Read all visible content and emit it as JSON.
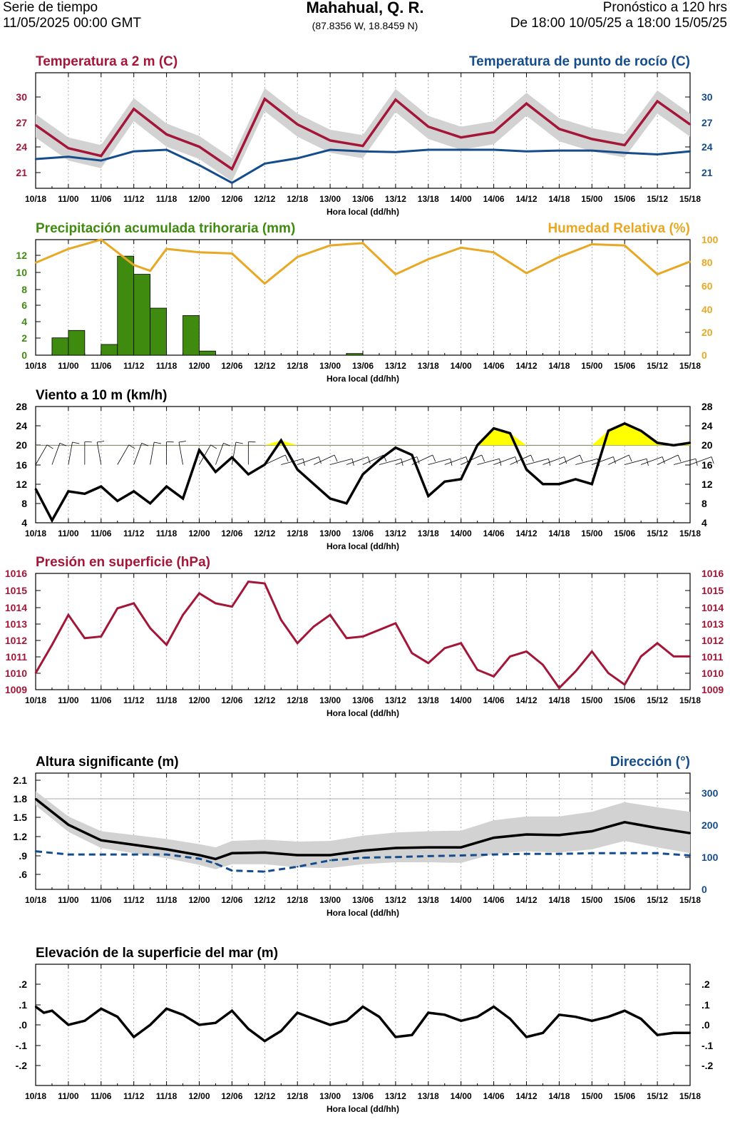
{
  "header": {
    "left_line1": "Serie de tiempo",
    "left_line2": "11/05/2025 00:00 GMT",
    "title": "Mahahual, Q. R.",
    "coords": "(87.8356 W, 18.8459 N)",
    "right_line1": "Pronóstico a 120 hrs",
    "right_line2": "De 18:00 10/05/25 a 18:00 15/05/25"
  },
  "colors": {
    "temp": "#a31638",
    "dew": "#144c8c",
    "precip": "#3f8b10",
    "rh": "#e8a824",
    "wind_fill": "#ffff00",
    "band": "#d2d2d2"
  },
  "chart_data": [
    {
      "id": "temp",
      "type": "line",
      "title_left": "Temperatura a 2 m (C)",
      "title_right": "Temperatura de punto de rocío (C)",
      "xlabel": "Hora local (dd/hh)",
      "x_ticks": [
        "10/18",
        "11/00",
        "11/06",
        "11/12",
        "11/18",
        "12/00",
        "12/06",
        "12/12",
        "12/18",
        "13/00",
        "13/06",
        "13/12",
        "13/18",
        "14/00",
        "14/06",
        "14/12",
        "14/18",
        "15/00",
        "15/06",
        "15/12",
        "15/18"
      ],
      "ylim": [
        19,
        34
      ],
      "y_ticks_left": [
        "21",
        "24",
        "27",
        "30"
      ],
      "y_ticks_right": [
        "21",
        "24",
        "27",
        "30"
      ],
      "x": [
        0,
        1,
        2,
        3,
        4,
        5,
        6,
        7,
        8,
        9,
        10,
        11,
        12,
        13,
        14,
        15,
        16,
        17,
        18,
        19,
        20
      ],
      "series": [
        {
          "name": "Temperatura a 2 m",
          "values": [
            27.2,
            24.2,
            23.2,
            29.3,
            26.0,
            24.4,
            21.5,
            30.6,
            27.3,
            25.2,
            24.5,
            30.5,
            27.0,
            25.6,
            26.3,
            30.0,
            26.7,
            25.4,
            24.6,
            30.3,
            27.3
          ]
        },
        {
          "name": "Temperatura de punto de rocío",
          "values": [
            22.8,
            23.1,
            22.6,
            23.8,
            24.0,
            22.0,
            19.7,
            22.2,
            22.9,
            24.0,
            23.8,
            23.7,
            24.0,
            24.0,
            24.0,
            23.8,
            23.9,
            23.9,
            23.6,
            23.4,
            23.8
          ]
        }
      ]
    },
    {
      "id": "precip",
      "type": "bar",
      "title_left": "Precipitación acumulada trihoraria (mm)",
      "title_right": "Humedad Relativa (%)",
      "xlabel": "Hora local (dd/hh)",
      "x_ticks": [
        "10/18",
        "11/00",
        "11/06",
        "11/12",
        "11/18",
        "12/00",
        "12/06",
        "12/12",
        "12/18",
        "13/00",
        "13/06",
        "13/12",
        "13/18",
        "14/00",
        "14/06",
        "14/12",
        "14/18",
        "15/00",
        "15/06",
        "15/12",
        "15/18"
      ],
      "ylim": [
        0,
        14
      ],
      "y_ticks_left": [
        "0",
        "2",
        "4",
        "6",
        "8",
        "10",
        "12"
      ],
      "y_ticks_right": [
        "0",
        "20",
        "40",
        "60",
        "80",
        "100"
      ],
      "bars": {
        "x_start": [
          0.5,
          1.0,
          2.0,
          2.5,
          3.0,
          3.5,
          4.5,
          5.0,
          9.5
        ],
        "values": [
          2.1,
          3.0,
          1.3,
          12.0,
          9.8,
          5.7,
          4.8,
          0.5,
          0.2
        ]
      },
      "rh": {
        "x": [
          0,
          1,
          2,
          3,
          3.5,
          4,
          5,
          6,
          7,
          8,
          9,
          10,
          11,
          12,
          13,
          14,
          15,
          16,
          17,
          18,
          19,
          20
        ],
        "values": [
          80,
          92,
          100,
          78,
          73,
          92,
          89,
          88,
          62,
          85,
          95,
          97,
          70,
          83,
          93,
          89,
          71,
          85,
          96,
          95,
          70,
          81
        ]
      }
    },
    {
      "id": "wind",
      "type": "line",
      "title_left": "Viento a 10 m (km/h)",
      "xlabel": "Hora local (dd/hh)",
      "x_ticks": [
        "10/18",
        "11/00",
        "11/06",
        "11/12",
        "11/18",
        "12/00",
        "12/06",
        "12/12",
        "12/18",
        "13/00",
        "13/06",
        "13/12",
        "13/18",
        "14/00",
        "14/06",
        "14/12",
        "14/18",
        "15/00",
        "15/06",
        "15/12",
        "15/18"
      ],
      "ylim": [
        4,
        28
      ],
      "y_ticks_left": [
        "4",
        "8",
        "12",
        "16",
        "20",
        "24",
        "28"
      ],
      "y_ticks_right": [
        "4",
        "8",
        "12",
        "16",
        "20",
        "24",
        "28"
      ],
      "threshold": 20,
      "x": [
        0,
        0.5,
        1,
        1.5,
        2,
        2.5,
        3,
        3.5,
        4,
        4.5,
        5,
        5.5,
        6,
        6.5,
        7,
        7.5,
        8,
        8.5,
        9,
        9.5,
        10,
        10.5,
        11,
        11.5,
        12,
        12.5,
        13,
        13.5,
        14,
        14.5,
        15,
        15.5,
        16,
        16.5,
        17,
        17.5,
        18,
        18.5,
        19,
        19.5,
        20
      ],
      "values": [
        11.0,
        4.5,
        10.5,
        10.0,
        11.5,
        8.5,
        10.5,
        8.0,
        11.5,
        9.0,
        19.0,
        14.5,
        17.5,
        14.0,
        16.0,
        21.0,
        15.0,
        12.0,
        9.0,
        8.0,
        14.0,
        17.0,
        19.5,
        18.0,
        9.5,
        12.5,
        13.0,
        20.0,
        23.5,
        22.5,
        15.0,
        12.0,
        12.0,
        13.0,
        12.0,
        23.0,
        24.5,
        23.0,
        20.5,
        20.0,
        20.5
      ]
    },
    {
      "id": "pres",
      "type": "line",
      "title_left": "Presión en superficie (hPa)",
      "xlabel": "Hora local (dd/hh)",
      "x_ticks": [
        "10/18",
        "11/00",
        "11/06",
        "11/12",
        "11/18",
        "12/00",
        "12/06",
        "12/12",
        "12/18",
        "13/00",
        "13/06",
        "13/12",
        "13/18",
        "14/00",
        "14/06",
        "14/12",
        "14/18",
        "15/00",
        "15/06",
        "15/12",
        "15/18"
      ],
      "ylim": [
        1009,
        1016
      ],
      "y_ticks_left": [
        "1009",
        "1010",
        "1011",
        "1012",
        "1013",
        "1014",
        "1015",
        "1016"
      ],
      "y_ticks_right": [
        "1009",
        "1010",
        "1011",
        "1012",
        "1013",
        "1014",
        "1015",
        "1016"
      ],
      "x": [
        0,
        0.5,
        1,
        1.5,
        2,
        2.5,
        3,
        3.5,
        4,
        4.5,
        5,
        5.5,
        6,
        6.5,
        7,
        7.5,
        8,
        8.5,
        9,
        9.5,
        10,
        10.5,
        11,
        11.5,
        12,
        12.5,
        13,
        13.5,
        14,
        14.5,
        15,
        15.5,
        16,
        16.5,
        17,
        17.5,
        18,
        18.5,
        19,
        19.5,
        20
      ],
      "values": [
        1010.0,
        1011.7,
        1013.5,
        1012.1,
        1012.2,
        1013.9,
        1014.2,
        1012.7,
        1011.7,
        1013.5,
        1014.8,
        1014.2,
        1014.0,
        1015.5,
        1015.4,
        1013.2,
        1011.8,
        1012.8,
        1013.5,
        1012.1,
        1012.2,
        1012.6,
        1013.0,
        1011.2,
        1010.6,
        1011.5,
        1011.8,
        1010.2,
        1009.8,
        1011.0,
        1011.3,
        1010.5,
        1009.1,
        1010.1,
        1011.3,
        1010.0,
        1009.3,
        1011.0,
        1011.8,
        1011.0,
        1011.0
      ]
    },
    {
      "id": "wave",
      "type": "line",
      "title_left": "Altura significante (m)",
      "title_right": "Dirección (°)",
      "xlabel": "Hora local (dd/hh)",
      "x_ticks": [
        "10/18",
        "11/00",
        "11/06",
        "11/12",
        "11/18",
        "12/00",
        "12/06",
        "12/12",
        "12/18",
        "13/00",
        "13/06",
        "13/12",
        "13/18",
        "14/00",
        "14/06",
        "14/12",
        "14/18",
        "15/00",
        "15/06",
        "15/12",
        "15/18"
      ],
      "ylim": [
        0.4,
        2.2
      ],
      "y_ticks_left": [
        ".6",
        ".9",
        "1.2",
        "1.5",
        "1.8",
        "2.1"
      ],
      "y_ticks_right": [
        "0",
        "100",
        "200",
        "300"
      ],
      "x": [
        0,
        1,
        2,
        3,
        4,
        5,
        5.5,
        6,
        7,
        8,
        9,
        10,
        11,
        12,
        13,
        14,
        15,
        16,
        17,
        18,
        19,
        20
      ],
      "series": [
        {
          "name": "Altura significante",
          "values": [
            1.8,
            1.4,
            1.16,
            1.09,
            1.02,
            0.93,
            0.87,
            0.96,
            0.97,
            0.93,
            0.93,
            1.0,
            1.04,
            1.05,
            1.05,
            1.2,
            1.25,
            1.24,
            1.3,
            1.44,
            1.35,
            1.27
          ]
        },
        {
          "name": "Dirección",
          "values": [
            118,
            108,
            108,
            108,
            108,
            95,
            80,
            58,
            55,
            70,
            90,
            98,
            100,
            103,
            105,
            108,
            110,
            110,
            112,
            112,
            112,
            105
          ]
        }
      ]
    },
    {
      "id": "sea",
      "type": "line",
      "title_left": "Elevación de la superficie del mar (m)",
      "xlabel": "Hora local (dd/hh)",
      "x_ticks": [
        "10/18",
        "11/00",
        "11/06",
        "11/12",
        "11/18",
        "12/00",
        "12/06",
        "12/12",
        "12/18",
        "13/00",
        "13/06",
        "13/12",
        "13/18",
        "14/00",
        "14/06",
        "14/12",
        "14/18",
        "15/00",
        "15/06",
        "15/12",
        "15/18"
      ],
      "ylim": [
        -0.3,
        0.3
      ],
      "y_ticks_left": [
        "-.2",
        "-.1",
        ".0",
        ".1",
        ".2"
      ],
      "y_ticks_right": [
        "-.2",
        "-.1",
        ".0",
        ".1",
        ".2"
      ],
      "x": [
        0,
        0.25,
        0.5,
        1,
        1.5,
        2,
        2.5,
        3,
        3.5,
        4,
        4.5,
        5,
        5.5,
        6,
        6.5,
        7,
        7.5,
        8,
        8.5,
        9,
        9.5,
        10,
        10.5,
        11,
        11.5,
        12,
        12.5,
        13,
        13.5,
        14,
        14.5,
        15,
        15.5,
        16,
        16.5,
        17,
        17.5,
        18,
        18.5,
        19,
        19.5,
        20
      ],
      "values": [
        0.09,
        0.06,
        0.07,
        0.0,
        0.02,
        0.08,
        0.04,
        -0.06,
        0.0,
        0.08,
        0.05,
        0.0,
        0.01,
        0.07,
        -0.02,
        -0.08,
        -0.03,
        0.06,
        0.03,
        0.0,
        0.02,
        0.09,
        0.04,
        -0.06,
        -0.05,
        0.06,
        0.05,
        0.02,
        0.04,
        0.09,
        0.03,
        -0.06,
        -0.04,
        0.05,
        0.04,
        0.02,
        0.04,
        0.07,
        0.03,
        -0.05,
        -0.04,
        -0.04
      ]
    }
  ]
}
